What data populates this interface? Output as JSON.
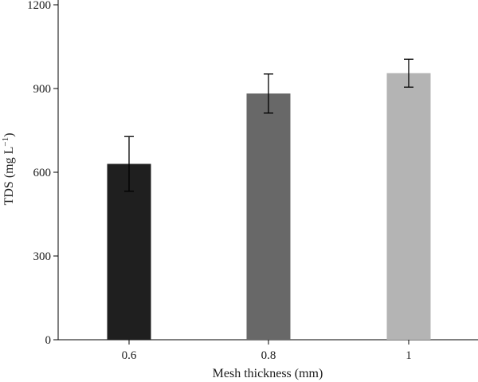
{
  "chart_data": {
    "type": "bar",
    "categories": [
      "0.6",
      "0.8",
      "1"
    ],
    "values": [
      630,
      882,
      955
    ],
    "errors": [
      98,
      70,
      50
    ],
    "bar_colors": [
      "#1f1f1f",
      "#686868",
      "#b4b4b4"
    ],
    "xlabel": "Mesh thickness (mm)",
    "ylabel": "TDS (mg L",
    "ylabel_sup": "−1",
    "ylabel_close": ")",
    "ylim": [
      0,
      1200
    ],
    "yticks": [
      0,
      300,
      600,
      900,
      1200
    ],
    "grid": false,
    "legend": "none"
  }
}
